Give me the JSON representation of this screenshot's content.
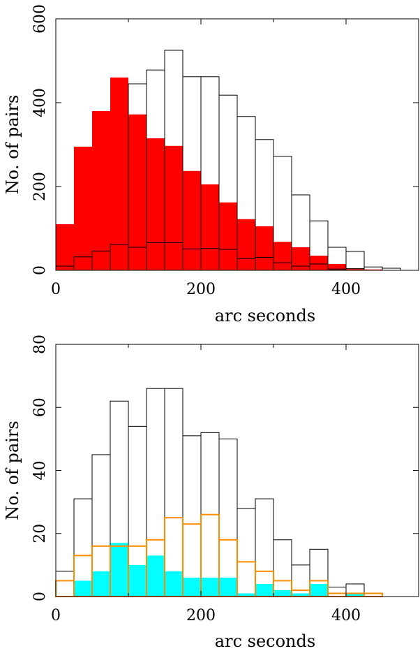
{
  "chart_data": [
    {
      "type": "bar",
      "subtype": "histogram",
      "xlabel": "arc seconds",
      "ylabel": "No. of pairs",
      "xlim": [
        0,
        500
      ],
      "ylim": [
        0,
        600
      ],
      "xticks": [
        "0",
        "200",
        "400"
      ],
      "yticks": [
        "0",
        "200",
        "400",
        "600"
      ],
      "bin_edges": [
        0,
        25,
        50,
        75,
        100,
        125,
        150,
        175,
        200,
        225,
        250,
        275,
        300,
        325,
        350,
        375,
        400,
        425,
        450,
        475,
        500
      ],
      "series": [
        {
          "style": "filled",
          "color": "#ff0000",
          "values": [
            110,
            295,
            380,
            460,
            372,
            315,
            297,
            237,
            205,
            162,
            122,
            105,
            68,
            55,
            35,
            15,
            3,
            2,
            0,
            0
          ]
        },
        {
          "style": "outline",
          "color": "#000000",
          "values": [
            10,
            32,
            46,
            62,
            55,
            66,
            66,
            51,
            52,
            50,
            28,
            31,
            18,
            10,
            15,
            3,
            4,
            0,
            0,
            0
          ]
        },
        {
          "style": "outline",
          "color": "#000000",
          "values": [
            0,
            0,
            0,
            0,
            445,
            478,
            525,
            462,
            462,
            418,
            367,
            312,
            272,
            180,
            118,
            55,
            45,
            8,
            5,
            0
          ]
        }
      ]
    },
    {
      "type": "bar",
      "subtype": "histogram",
      "xlabel": "arc seconds",
      "ylabel": "No. of pairs",
      "xlim": [
        0,
        500
      ],
      "ylim": [
        0,
        80
      ],
      "xticks": [
        "0",
        "200",
        "400"
      ],
      "yticks": [
        "0",
        "20",
        "40",
        "60",
        "80"
      ],
      "bin_edges": [
        0,
        25,
        50,
        75,
        100,
        125,
        150,
        175,
        200,
        225,
        250,
        275,
        300,
        325,
        350,
        375,
        400,
        425,
        450,
        475,
        500
      ],
      "series": [
        {
          "style": "filled",
          "color": "#00ffff",
          "values": [
            0,
            5,
            8,
            17,
            10,
            13,
            8,
            6,
            6,
            6,
            1,
            4,
            2,
            1,
            4,
            0,
            1,
            0,
            0,
            0
          ]
        },
        {
          "style": "outline",
          "color": "#000000",
          "values": [
            8,
            31,
            45,
            62,
            54,
            66,
            66,
            51,
            52,
            50,
            28,
            31,
            18,
            10,
            15,
            3,
            4,
            0,
            0,
            0
          ]
        },
        {
          "style": "outline",
          "color": "#ff8c00",
          "values": [
            5,
            13,
            16,
            16,
            16,
            18,
            25,
            23,
            26,
            18,
            11,
            8,
            5,
            2,
            5,
            1,
            1,
            1,
            0,
            0
          ]
        }
      ]
    }
  ]
}
